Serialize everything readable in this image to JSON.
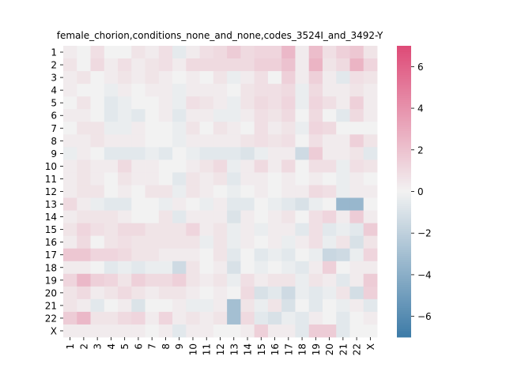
{
  "chart_data": {
    "type": "heatmap",
    "title": "female_chorion,conditions_none_and_none,codes_3524I_and_3492-Y",
    "xlabel": "",
    "ylabel": "",
    "rows": [
      "1",
      "2",
      "3",
      "4",
      "5",
      "6",
      "7",
      "8",
      "9",
      "10",
      "11",
      "12",
      "13",
      "14",
      "15",
      "16",
      "17",
      "18",
      "19",
      "20",
      "21",
      "22",
      "X"
    ],
    "cols": [
      "1",
      "2",
      "3",
      "4",
      "5",
      "6",
      "7",
      "8",
      "9",
      "10",
      "11",
      "12",
      "13",
      "14",
      "15",
      "16",
      "17",
      "18",
      "19",
      "20",
      "21",
      "22",
      "X"
    ],
    "colorbar": {
      "vmin": -7,
      "vmax": 7,
      "ticks": [
        -6,
        -4,
        -2,
        0,
        2,
        4,
        6
      ],
      "tick_labels": [
        "−6",
        "−4",
        "−2",
        "0",
        "2",
        "4",
        "6"
      ],
      "low_color": "#3d7ba7",
      "mid_color": "#f2f2f2",
      "high_color": "#de4a77"
    },
    "values": [
      [
        0.3,
        0.0,
        0.8,
        0.0,
        0.0,
        0.6,
        0.3,
        0.8,
        -0.5,
        0.3,
        0.8,
        1.0,
        1.6,
        1.0,
        1.2,
        1.2,
        2.4,
        0.3,
        2.2,
        0.8,
        1.4,
        1.8,
        0.6
      ],
      [
        0.6,
        0.0,
        1.0,
        0.3,
        0.8,
        0.3,
        0.6,
        0.8,
        0.3,
        1.0,
        1.0,
        1.0,
        1.0,
        1.0,
        1.4,
        1.4,
        2.0,
        0.3,
        2.6,
        0.6,
        1.0,
        2.6,
        1.2
      ],
      [
        0.3,
        0.6,
        0.0,
        0.3,
        0.6,
        0.3,
        0.6,
        0.3,
        0.0,
        0.3,
        0.0,
        0.6,
        -0.3,
        0.3,
        0.8,
        0.0,
        1.4,
        0.3,
        1.4,
        0.3,
        -0.6,
        0.8,
        0.6
      ],
      [
        0.3,
        0.0,
        0.0,
        -0.3,
        0.3,
        0.0,
        0.3,
        0.3,
        -0.3,
        0.3,
        0.3,
        0.3,
        0.0,
        0.6,
        0.8,
        0.8,
        1.0,
        -0.3,
        1.0,
        0.3,
        0.3,
        0.6,
        0.3
      ],
      [
        0.0,
        0.6,
        0.0,
        -0.6,
        -0.3,
        0.0,
        0.0,
        0.3,
        -0.3,
        0.8,
        0.6,
        0.3,
        -0.3,
        0.6,
        1.0,
        0.8,
        1.2,
        -0.3,
        1.2,
        0.8,
        0.3,
        1.4,
        0.3
      ],
      [
        0.3,
        0.3,
        0.0,
        -0.6,
        -0.3,
        -0.6,
        0.0,
        0.3,
        -0.6,
        0.3,
        0.3,
        -0.3,
        -0.3,
        0.3,
        0.8,
        0.6,
        1.0,
        0.0,
        1.0,
        0.0,
        -0.6,
        1.0,
        0.3
      ],
      [
        0.0,
        0.6,
        0.6,
        -0.3,
        -0.3,
        0.3,
        0.0,
        0.0,
        -0.3,
        0.6,
        0.0,
        0.6,
        0.3,
        0.0,
        0.8,
        0.3,
        0.6,
        -0.3,
        1.2,
        1.0,
        0.0,
        0.0,
        0.0
      ],
      [
        0.3,
        0.3,
        0.6,
        0.3,
        0.3,
        0.3,
        0.0,
        0.0,
        -0.3,
        0.3,
        0.3,
        0.3,
        0.3,
        0.6,
        0.8,
        0.6,
        0.8,
        0.0,
        0.8,
        0.3,
        0.3,
        1.4,
        0.6
      ],
      [
        -0.3,
        0.3,
        0.0,
        -0.6,
        -0.6,
        -0.6,
        -0.3,
        -0.6,
        0.0,
        -0.3,
        -0.6,
        -0.6,
        -0.6,
        -0.9,
        -0.3,
        0.3,
        0.3,
        -1.4,
        1.6,
        0.3,
        0.3,
        0.6,
        -0.6
      ],
      [
        0.3,
        0.6,
        0.3,
        0.3,
        1.0,
        0.3,
        0.3,
        0.0,
        0.0,
        0.3,
        0.6,
        1.0,
        -0.3,
        0.3,
        1.0,
        0.3,
        1.0,
        0.0,
        0.8,
        0.8,
        -0.3,
        0.8,
        0.6
      ],
      [
        0.3,
        0.6,
        0.3,
        0.0,
        0.6,
        0.3,
        0.3,
        0.0,
        -0.6,
        0.6,
        0.3,
        0.6,
        -0.6,
        0.3,
        0.3,
        0.0,
        0.3,
        0.0,
        0.3,
        0.0,
        -0.3,
        0.3,
        0.0
      ],
      [
        0.3,
        0.6,
        0.6,
        0.0,
        0.3,
        0.0,
        0.6,
        0.6,
        -0.3,
        0.6,
        0.3,
        0.0,
        -0.3,
        0.0,
        0.3,
        0.0,
        0.3,
        0.3,
        1.0,
        0.8,
        -0.3,
        0.3,
        0.3
      ],
      [
        1.0,
        0.3,
        -0.3,
        -0.6,
        -0.6,
        0.0,
        0.0,
        -0.3,
        0.3,
        0.0,
        -0.3,
        0.3,
        -0.6,
        -0.6,
        0.0,
        -0.3,
        -0.6,
        -1.0,
        -0.3,
        0.0,
        -3.5,
        -3.5,
        0.0
      ],
      [
        0.3,
        0.6,
        0.6,
        0.6,
        0.3,
        0.0,
        0.0,
        0.6,
        -0.6,
        0.3,
        0.3,
        0.3,
        -0.9,
        0.3,
        0.0,
        0.3,
        0.6,
        0.0,
        0.8,
        1.2,
        0.3,
        1.6,
        0.3
      ],
      [
        0.6,
        1.2,
        0.8,
        0.6,
        1.0,
        1.0,
        0.6,
        0.6,
        0.6,
        1.2,
        0.3,
        0.6,
        -0.3,
        0.3,
        -0.3,
        0.3,
        0.3,
        -0.6,
        0.8,
        -0.6,
        -0.3,
        -0.6,
        1.6
      ],
      [
        0.3,
        1.0,
        0.0,
        0.6,
        0.8,
        0.6,
        0.6,
        0.6,
        0.6,
        0.6,
        -0.3,
        0.6,
        -0.3,
        0.3,
        0.0,
        0.3,
        -0.3,
        0.3,
        0.8,
        -0.3,
        0.6,
        -1.0,
        0.6
      ],
      [
        1.8,
        1.8,
        1.2,
        1.2,
        1.0,
        0.6,
        0.6,
        0.3,
        0.3,
        0.3,
        0.0,
        0.6,
        -0.6,
        0.0,
        -0.6,
        -0.3,
        -0.6,
        0.0,
        -0.3,
        -1.6,
        -1.4,
        -0.3,
        1.2
      ],
      [
        0.3,
        0.3,
        0.0,
        -0.6,
        -0.3,
        -0.6,
        -0.3,
        -0.3,
        -1.4,
        0.6,
        0.0,
        0.3,
        -1.0,
        0.0,
        -0.3,
        0.0,
        -0.3,
        -0.6,
        0.3,
        1.4,
        0.0,
        0.3,
        0.3
      ],
      [
        1.2,
        2.4,
        1.4,
        1.2,
        0.6,
        1.4,
        1.0,
        1.0,
        1.4,
        0.6,
        0.3,
        0.6,
        -0.3,
        0.8,
        0.3,
        0.6,
        0.6,
        -0.3,
        0.6,
        0.3,
        -0.6,
        0.3,
        1.6
      ],
      [
        0.6,
        1.0,
        0.3,
        0.6,
        1.0,
        0.6,
        0.3,
        0.6,
        0.6,
        0.3,
        0.0,
        0.3,
        0.0,
        1.0,
        -1.0,
        -0.6,
        -1.4,
        -0.3,
        -0.6,
        -0.3,
        0.6,
        -1.2,
        1.4
      ],
      [
        0.6,
        0.3,
        -0.6,
        0.0,
        0.3,
        -0.9,
        0.0,
        0.0,
        0.3,
        -0.3,
        -0.3,
        0.3,
        -3.0,
        0.6,
        -0.3,
        0.6,
        -1.0,
        0.0,
        -0.6,
        0.0,
        -0.3,
        0.3,
        -0.6
      ],
      [
        1.6,
        2.4,
        0.6,
        0.6,
        1.0,
        1.2,
        0.3,
        1.2,
        0.3,
        0.6,
        0.3,
        0.6,
        -3.0,
        1.0,
        -0.6,
        -1.0,
        -0.3,
        -0.6,
        0.3,
        0.0,
        -0.6,
        0.0,
        0.3
      ],
      [
        0.3,
        0.3,
        0.3,
        0.3,
        0.3,
        0.3,
        0.0,
        0.3,
        -0.6,
        0.3,
        0.3,
        0.0,
        0.0,
        0.3,
        1.4,
        0.3,
        0.3,
        -0.6,
        1.6,
        1.6,
        -0.6,
        0.0,
        0.0
      ]
    ]
  }
}
